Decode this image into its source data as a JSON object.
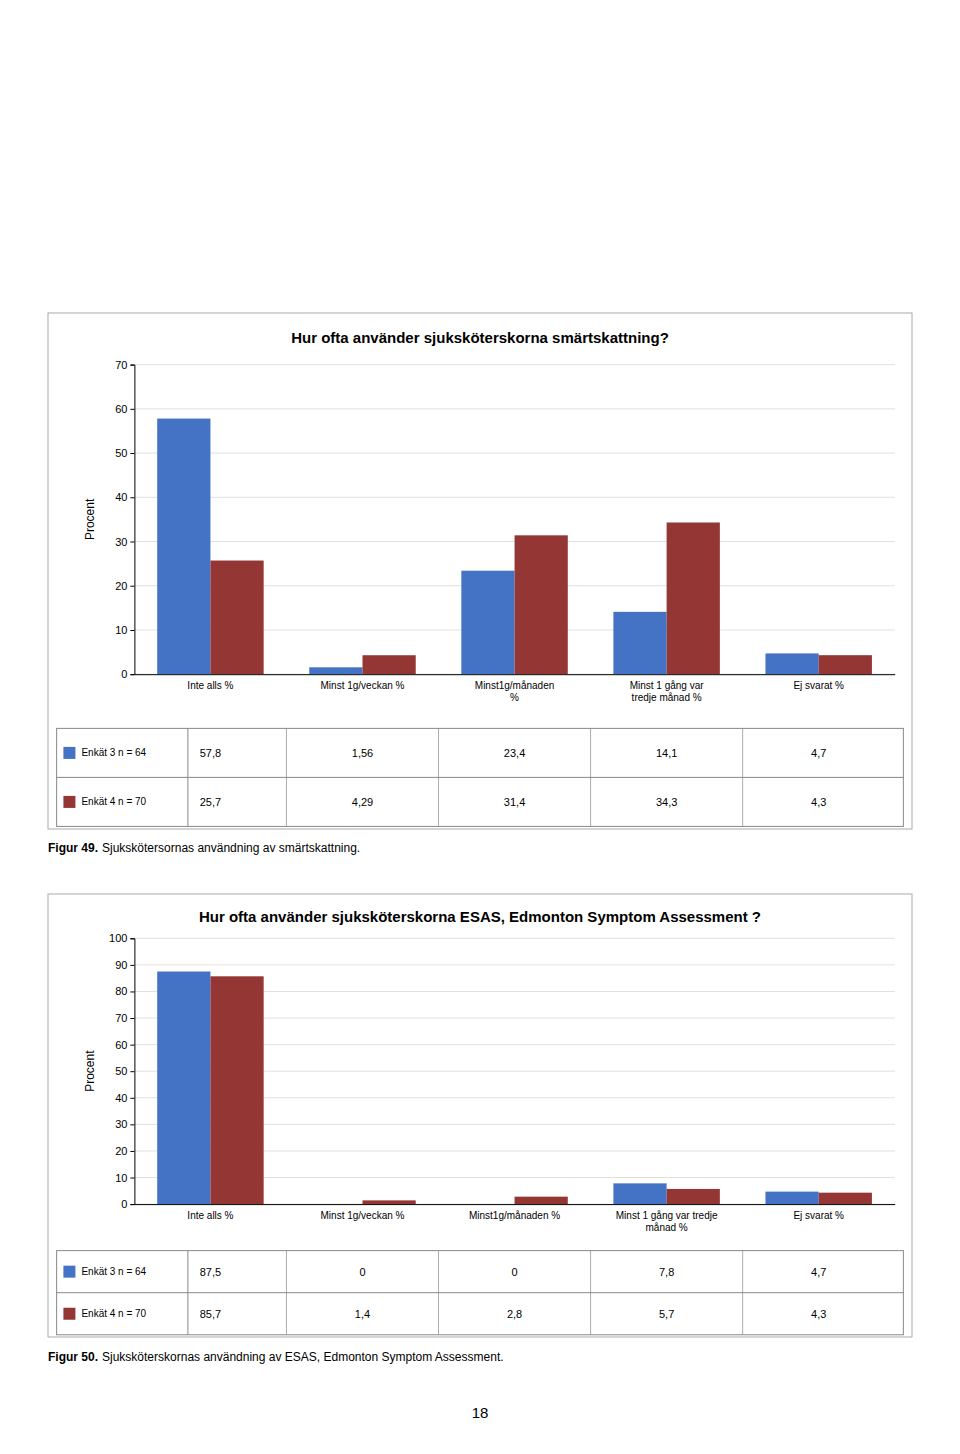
{
  "chart_data": [
    {
      "type": "bar",
      "title": "Hur ofta använder sjuksköterskorna smärtskattning?",
      "categories": [
        "Inte alls %",
        "Minst 1g/veckan %",
        "Minst1g/månaden\n%",
        "Minst 1 gång var\ntredje månad %",
        "Ej svarat %"
      ],
      "series": [
        {
          "name": "Enkät 3 n = 64",
          "color": "#4472C4",
          "values": [
            57.8,
            1.56,
            23.4,
            14.1,
            4.7
          ],
          "value_labels": [
            "57,8",
            "1,56",
            "23,4",
            "14,1",
            "4,7"
          ]
        },
        {
          "name": "Enkät 4 n = 70",
          "color": "#943634",
          "values": [
            25.7,
            4.29,
            31.4,
            34.3,
            4.3
          ],
          "value_labels": [
            "25,7",
            "4,29",
            "31,4",
            "34,3",
            "4,3"
          ]
        }
      ],
      "y_label": "Procent",
      "ylim": [
        0,
        70
      ],
      "yticks": [
        0,
        10,
        20,
        30,
        40,
        50,
        60,
        70
      ],
      "grid": true,
      "annotations": [
        "Figur 49.",
        "Sjukskötersornas användning av smärtskattning."
      ]
    },
    {
      "type": "bar",
      "title": "Hur ofta använder sjuksköterskorna ESAS, Edmonton Symptom Assessment ?",
      "categories": [
        "Inte alls %",
        "Minst 1g/veckan %",
        "Minst1g/månaden %",
        "Minst 1 gång var tredje\nmånad %",
        "Ej svarat %"
      ],
      "series": [
        {
          "name": "Enkät 3 n = 64",
          "color": "#4472C4",
          "values": [
            87.5,
            0,
            0,
            7.8,
            4.7
          ],
          "value_labels": [
            "87,5",
            "0",
            "0",
            "7,8",
            "4,7"
          ]
        },
        {
          "name": "Enkät 4 n = 70",
          "color": "#943634",
          "values": [
            85.7,
            1.4,
            2.8,
            5.7,
            4.3
          ],
          "value_labels": [
            "85,7",
            "1,4",
            "2,8",
            "5,7",
            "4,3"
          ]
        }
      ],
      "y_label": "Procent",
      "ylim": [
        0,
        100
      ],
      "yticks": [
        0,
        10,
        20,
        30,
        40,
        50,
        60,
        70,
        80,
        90,
        100
      ],
      "grid": true,
      "annotations": [
        "Figur 50.",
        "Sjuksköterskornas användning av ESAS, Edmonton Symptom Assessment."
      ]
    }
  ],
  "page_number": "18"
}
